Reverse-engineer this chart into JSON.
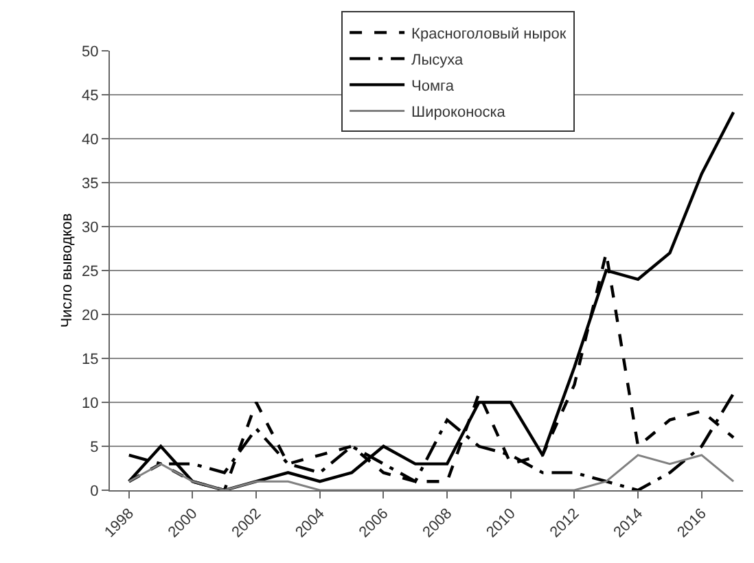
{
  "chart_data": {
    "type": "line",
    "ylabel": "Число выводков",
    "x": [
      1998,
      1999,
      2000,
      2001,
      2002,
      2003,
      2004,
      2005,
      2006,
      2007,
      2008,
      2009,
      2010,
      2011,
      2012,
      2013,
      2014,
      2015,
      2016,
      2017
    ],
    "series": [
      {
        "name": "Красноголовый нырок",
        "color": "#000000",
        "line_style": "dotted",
        "values": [
          1,
          3,
          1,
          0,
          10,
          3,
          4,
          5,
          2,
          1,
          1,
          11,
          3,
          4,
          12,
          27,
          5,
          8,
          9,
          6
        ]
      },
      {
        "name": "Лысуха",
        "color": "#000000",
        "line_style": "dashed",
        "values": [
          4,
          3,
          3,
          2,
          7,
          3,
          2,
          5,
          3,
          1,
          8,
          5,
          4,
          2,
          2,
          1,
          0,
          2,
          5,
          11
        ]
      },
      {
        "name": "Чомга",
        "color": "#000000",
        "line_style": "solid",
        "values": [
          1,
          5,
          1,
          0,
          1,
          2,
          1,
          2,
          5,
          3,
          3,
          10,
          10,
          4,
          14,
          25,
          24,
          27,
          36,
          43
        ]
      },
      {
        "name": "Широконоска",
        "color": "#808080",
        "line_style": "solid",
        "values": [
          1,
          3,
          1,
          0,
          1,
          1,
          0,
          0,
          0,
          0,
          0,
          0,
          0,
          0,
          0,
          1,
          4,
          3,
          4,
          1
        ]
      }
    ],
    "xlim": [
      1997.4,
      2017.3
    ],
    "xticks": [
      1998,
      2000,
      2002,
      2004,
      2006,
      2008,
      2010,
      2012,
      2014,
      2016
    ],
    "ylim": [
      0,
      50
    ],
    "yticks": [
      0,
      5,
      10,
      15,
      20,
      25,
      30,
      35,
      40,
      45,
      50
    ],
    "grid": "y",
    "legend": "top",
    "marker": "none"
  }
}
